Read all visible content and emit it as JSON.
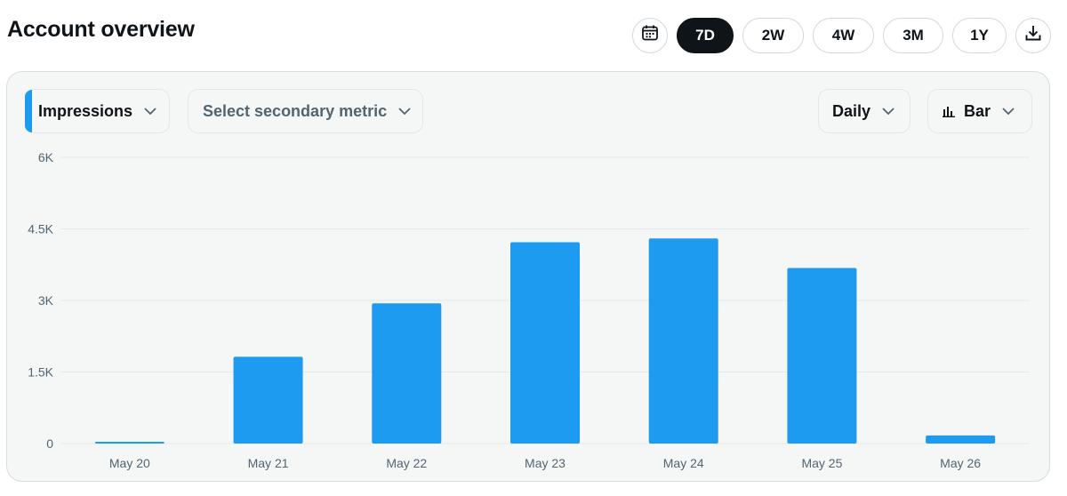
{
  "header": {
    "title": "Account overview"
  },
  "toolbar": {
    "calendar_icon": "calendar-icon",
    "download_icon": "download-icon",
    "ranges": [
      {
        "label": "7D",
        "active": true
      },
      {
        "label": "2W",
        "active": false
      },
      {
        "label": "4W",
        "active": false
      },
      {
        "label": "3M",
        "active": false
      },
      {
        "label": "1Y",
        "active": false
      }
    ]
  },
  "controls": {
    "primary_metric": "Impressions",
    "secondary_metric_placeholder": "Select secondary metric",
    "granularity": "Daily",
    "chart_type": "Bar"
  },
  "colors": {
    "accent": "#1d9bf0",
    "active_pill": "#0f1419",
    "panel": "#f5f7f7"
  },
  "chart_data": {
    "type": "bar",
    "categories": [
      "May 20",
      "May 21",
      "May 22",
      "May 23",
      "May 24",
      "May 25",
      "May 26"
    ],
    "values": [
      30,
      1820,
      2940,
      4220,
      4300,
      3680,
      170
    ],
    "ylim": [
      0,
      6000
    ],
    "yticks": [
      {
        "value": 0,
        "label": "0"
      },
      {
        "value": 1500,
        "label": "1.5K"
      },
      {
        "value": 3000,
        "label": "3K"
      },
      {
        "value": 4500,
        "label": "4.5K"
      },
      {
        "value": 6000,
        "label": "6K"
      }
    ],
    "grid": true
  }
}
